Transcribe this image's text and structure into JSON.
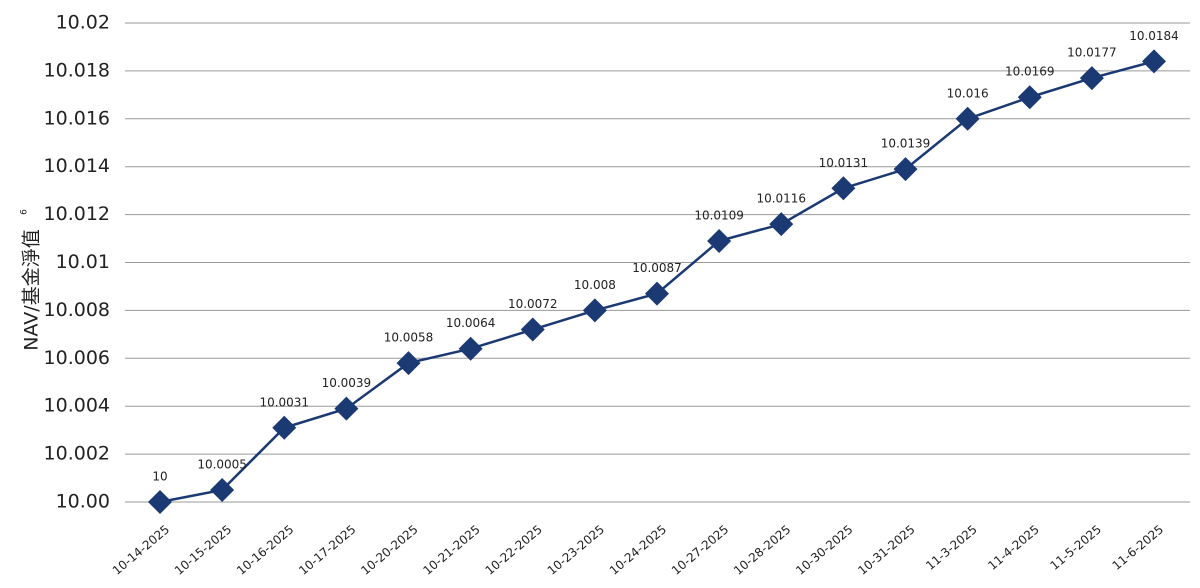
{
  "chart_data": {
    "type": "line",
    "y_label": "NAV/基金淨值",
    "y_label_note": "6",
    "categories": [
      "10-14-2025",
      "10-15-2025",
      "10-16-2025",
      "10-17-2025",
      "10-20-2025",
      "10-21-2025",
      "10-22-2025",
      "10-23-2025",
      "10-24-2025",
      "10-27-2025",
      "10-28-2025",
      "10-30-2025",
      "10-31-2025",
      "11-3-2025",
      "11-4-2025",
      "11-5-2025",
      "11-6-2025"
    ],
    "series": [
      {
        "color": "#1b3a73",
        "values": [
          10,
          10.0005,
          10.0031,
          10.0039,
          10.0058,
          10.0064,
          10.0072,
          10.008,
          10.0087,
          10.0109,
          10.0116,
          10.0131,
          10.0139,
          10.016,
          10.0169,
          10.0177,
          10.0184
        ]
      }
    ],
    "ylim": [
      10,
      10.02
    ],
    "yticks": [
      {
        "value": 10,
        "label": "10.00"
      },
      10.002,
      10.004,
      10.006,
      10.008,
      10.01,
      10.012,
      10.014,
      10.016,
      10.018,
      10.02
    ],
    "grid": true
  }
}
